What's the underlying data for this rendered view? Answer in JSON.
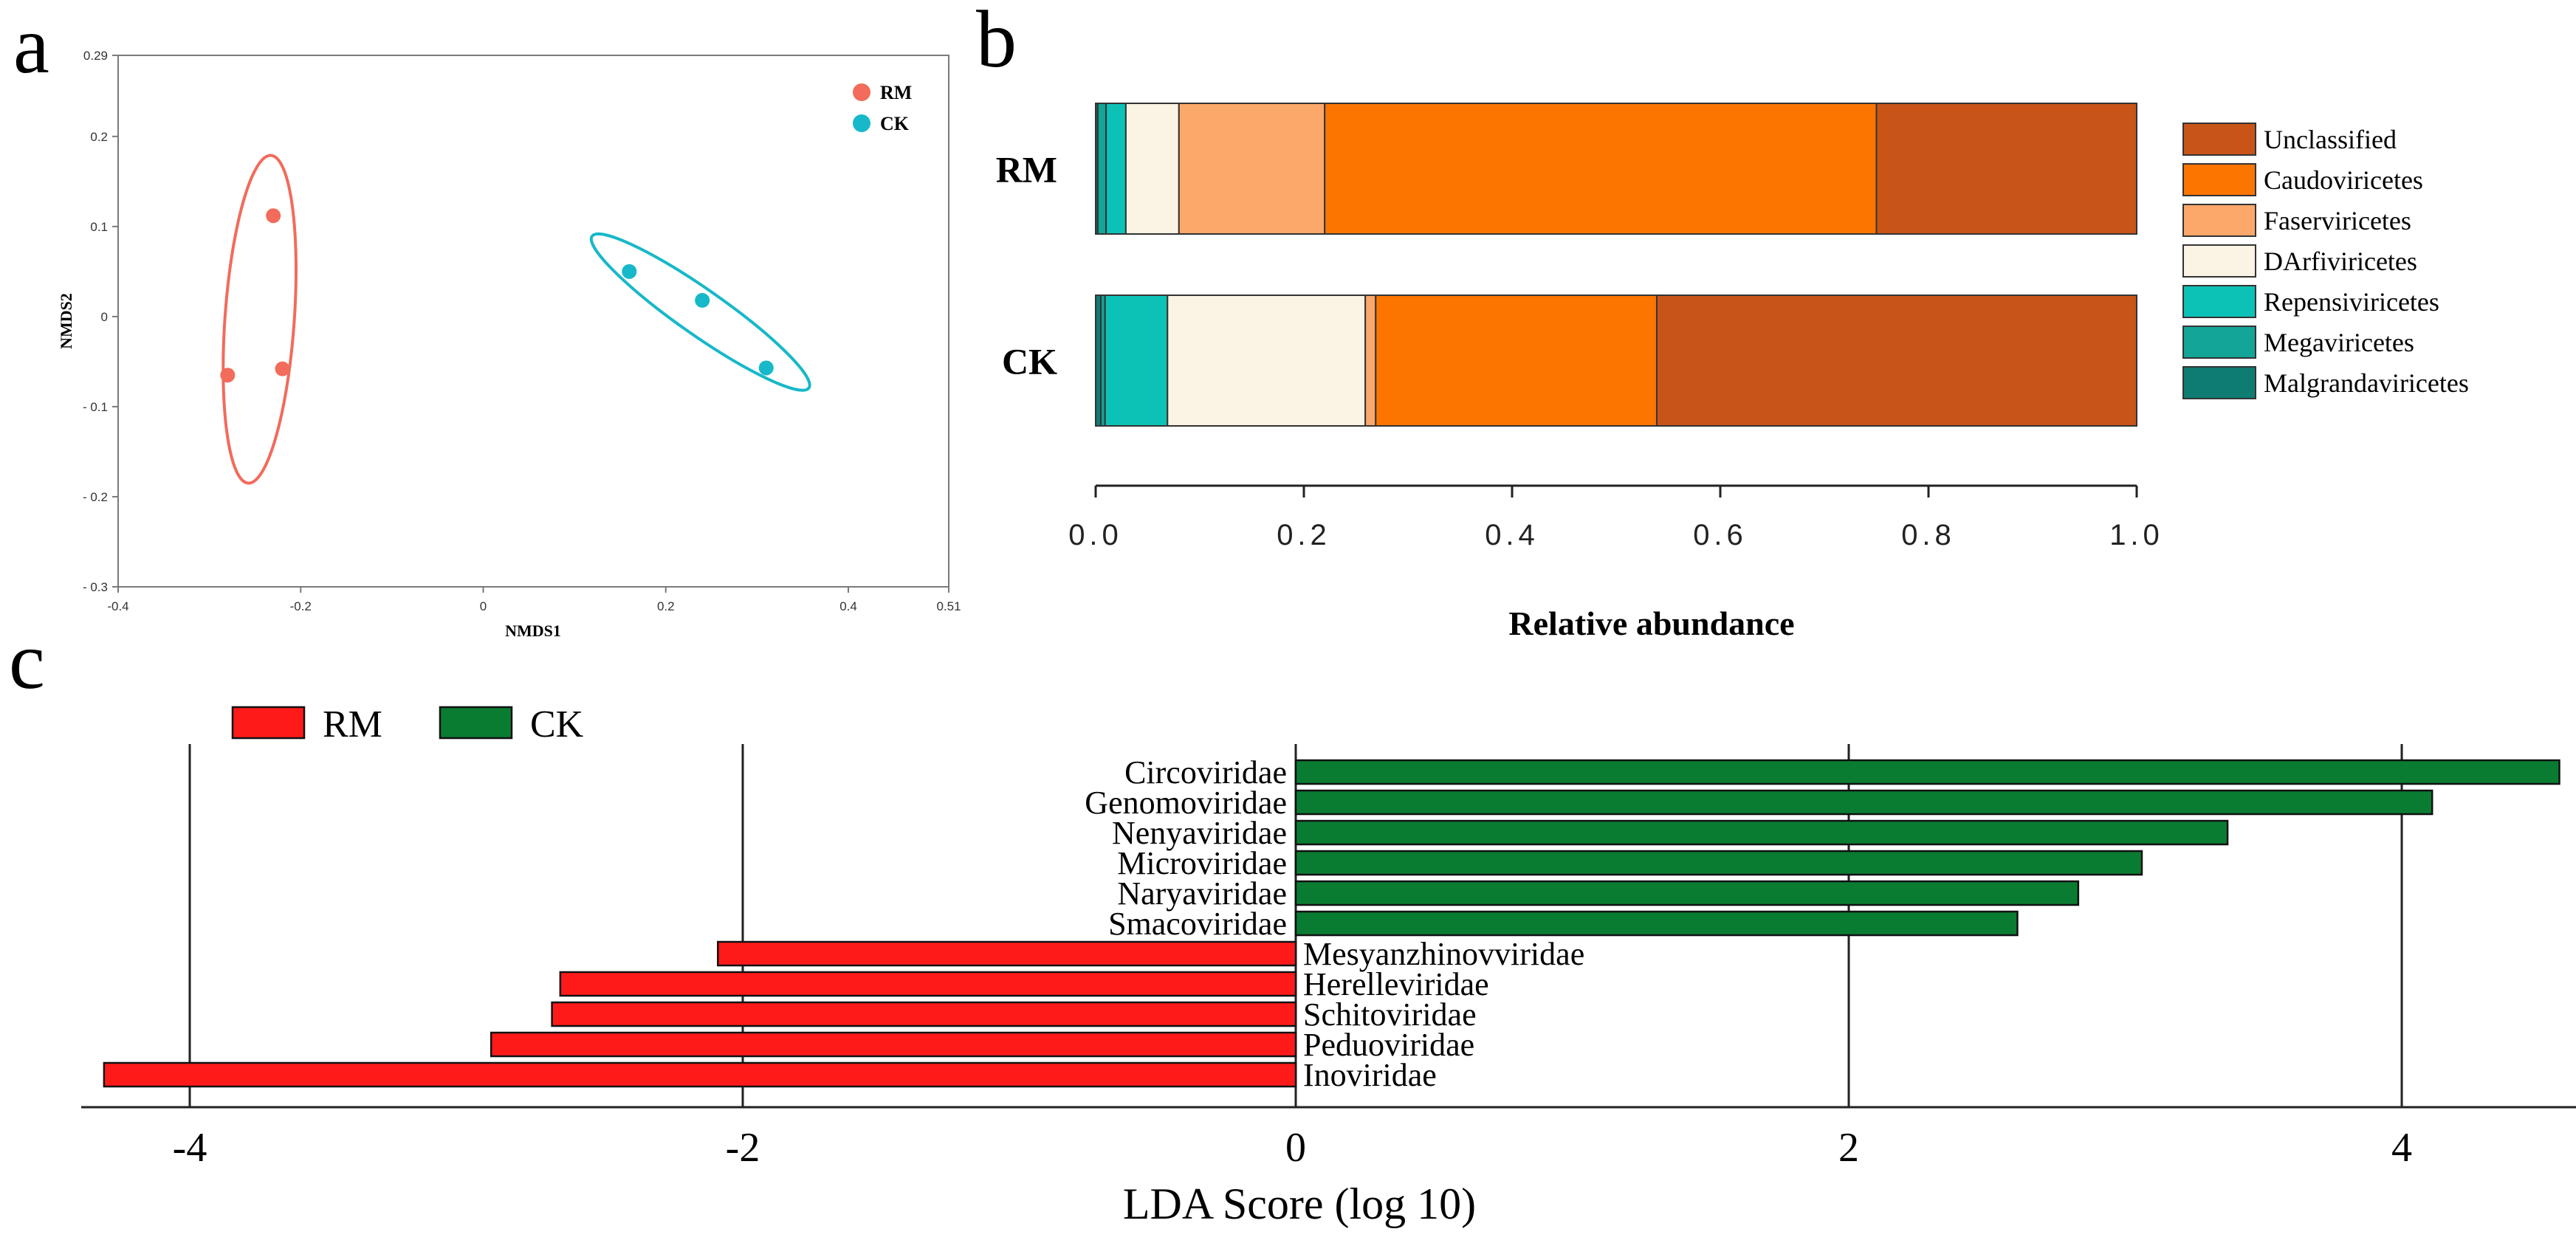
{
  "panels": {
    "a": "a",
    "b": "b",
    "c": "c"
  },
  "chart_data": [
    {
      "id": "nmds",
      "type": "scatter",
      "xlabel": "NMDS1",
      "ylabel": "NMDS2",
      "xlim": [
        -0.4,
        0.51
      ],
      "ylim": [
        -0.3,
        0.29
      ],
      "xticks": [
        -0.4,
        -0.2,
        0,
        0.2,
        0.4,
        0.51
      ],
      "xtick_labels": [
        "-0.4",
        "-0.2",
        "0",
        "0.2",
        "0.4",
        "0.51"
      ],
      "yticks": [
        0.29,
        0.2,
        0.1,
        0,
        -0.1,
        -0.2,
        -0.3
      ],
      "ytick_labels": [
        "0.29",
        "0.2",
        "0.1",
        "0",
        "- 0.1",
        "- 0.2",
        "- 0.3"
      ],
      "series": [
        {
          "name": "RM",
          "color": "#f26b5b",
          "points": [
            [
              -0.23,
              0.112
            ],
            [
              -0.28,
              -0.065
            ],
            [
              -0.22,
              -0.058
            ]
          ],
          "ellipse": {
            "center": [
              -0.245,
              -0.003
            ],
            "semi_axes": [
              0.18,
              0.038
            ],
            "angle_deg": 86
          }
        },
        {
          "name": "CK",
          "color": "#17b8c9",
          "points": [
            [
              0.16,
              0.05
            ],
            [
              0.24,
              0.018
            ],
            [
              0.31,
              -0.057
            ]
          ],
          "ellipse": {
            "center": [
              0.238,
              0.005
            ],
            "semi_axes": [
              0.145,
              0.025
            ],
            "angle_deg": -35
          }
        }
      ]
    },
    {
      "id": "composition",
      "type": "bar",
      "orientation": "horizontal",
      "stacked": true,
      "xlabel": "Relative abundance",
      "xlim": [
        0,
        1
      ],
      "xtick_labels": [
        "0.0",
        "0.2",
        "0.4",
        "0.6",
        "0.8",
        "1.0"
      ],
      "categories": [
        "RM",
        "CK"
      ],
      "series": [
        {
          "name": "Malgrandaviricetes",
          "color": "#0f7c72",
          "values": [
            0.002,
            0.005
          ]
        },
        {
          "name": "Megaviricetes",
          "color": "#12a598",
          "values": [
            0.008,
            0.004
          ]
        },
        {
          "name": "Repensiviricetes",
          "color": "#0cc2b6",
          "values": [
            0.019,
            0.06
          ]
        },
        {
          "name": "DArfiviricetes",
          "color": "#fbf3e4",
          "values": [
            0.051,
            0.19
          ]
        },
        {
          "name": "Faserviricetes",
          "color": "#fca86a",
          "values": [
            0.14,
            0.01
          ]
        },
        {
          "name": "Caudoviricetes",
          "color": "#fc7500",
          "values": [
            0.53,
            0.27
          ]
        },
        {
          "name": "Unclassified",
          "color": "#c95418",
          "values": [
            0.25,
            0.461
          ]
        }
      ],
      "legend": [
        "Unclassified",
        "Caudoviricetes",
        "Faserviricetes",
        "DArfiviricetes",
        "Repensiviricetes",
        "Megaviricetes",
        "Malgrandaviricetes"
      ]
    },
    {
      "id": "lefse",
      "type": "bar",
      "orientation": "horizontal",
      "xlabel": "LDA Score (log 10)",
      "xlim": [
        -4.3,
        4.6
      ],
      "xticks": [
        -4,
        -2,
        0,
        2,
        4
      ],
      "xtick_labels": [
        "-4",
        "-2",
        "0",
        "2",
        "4"
      ],
      "legend": [
        {
          "name": "RM",
          "color": "#ff1a1a"
        },
        {
          "name": "CK",
          "color": "#0a7c32"
        }
      ],
      "bars": [
        {
          "label": "Circoviridae",
          "value": 4.57,
          "group": "CK"
        },
        {
          "label": "Genomoviridae",
          "value": 4.11,
          "group": "CK"
        },
        {
          "label": "Nenyaviridae",
          "value": 3.37,
          "group": "CK"
        },
        {
          "label": "Microviridae",
          "value": 3.06,
          "group": "CK"
        },
        {
          "label": "Naryaviridae",
          "value": 2.83,
          "group": "CK"
        },
        {
          "label": "Smacoviridae",
          "value": 2.61,
          "group": "CK"
        },
        {
          "label": "Mesyanzhinovviridae",
          "value": -2.09,
          "group": "RM"
        },
        {
          "label": "Herelleviridae",
          "value": -2.66,
          "group": "RM"
        },
        {
          "label": "Schitoviridae",
          "value": -2.69,
          "group": "RM"
        },
        {
          "label": "Peduoviridae",
          "value": -2.91,
          "group": "RM"
        },
        {
          "label": "Inoviridae",
          "value": -4.31,
          "group": "RM"
        }
      ]
    }
  ]
}
